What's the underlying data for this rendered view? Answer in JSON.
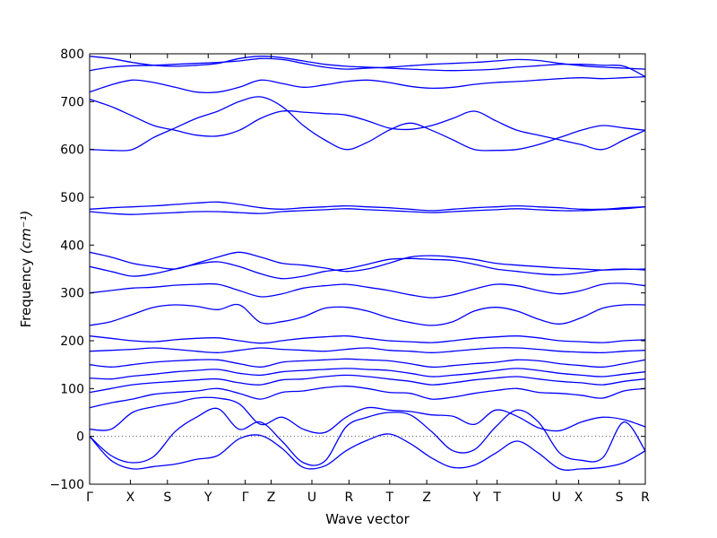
{
  "chart_data": {
    "type": "line",
    "xlabel": "Wave vector",
    "ylabel": "Frequency ",
    "ylabel_unit": "(cm⁻¹)",
    "ylim": [
      -100,
      800
    ],
    "yticks": [
      -100,
      0,
      100,
      200,
      300,
      400,
      500,
      600,
      700,
      800
    ],
    "grid": false,
    "zero_line": "dotted",
    "line_color": "#0000ff",
    "k_points": [
      {
        "label": "Γ",
        "x": 0.0
      },
      {
        "label": "X",
        "x": 0.44
      },
      {
        "label": "S",
        "x": 0.84
      },
      {
        "label": "Y",
        "x": 1.28
      },
      {
        "label": "Γ",
        "x": 1.68
      },
      {
        "label": "Z",
        "x": 1.96
      },
      {
        "label": "U",
        "x": 2.4
      },
      {
        "label": "R",
        "x": 2.8
      },
      {
        "label": "T",
        "x": 3.24
      },
      {
        "label": "Z",
        "x": 3.64
      },
      {
        "label": "Y",
        "x": 4.18
      },
      {
        "label": "T",
        "x": 4.4
      },
      {
        "label": "U",
        "x": 5.04
      },
      {
        "label": "X",
        "x": 5.28
      },
      {
        "label": "S",
        "x": 5.72
      },
      {
        "label": "R",
        "x": 6.0
      }
    ],
    "series": [
      {
        "values": [
          0,
          -50,
          -68,
          -63,
          -58,
          -48,
          -40,
          -5,
          2,
          -25,
          -65,
          -62,
          -30,
          -8,
          5,
          -15,
          -45,
          -65,
          -60,
          -35,
          -10,
          -35,
          -68,
          -68,
          -65,
          -55,
          -30
        ]
      },
      {
        "values": [
          0,
          -40,
          -55,
          -42,
          10,
          40,
          58,
          15,
          30,
          -10,
          -55,
          -52,
          20,
          40,
          50,
          45,
          10,
          -30,
          -28,
          20,
          55,
          30,
          -35,
          -50,
          -45,
          30,
          -30
        ]
      },
      {
        "values": [
          15,
          15,
          50,
          62,
          70,
          80,
          80,
          68,
          25,
          40,
          15,
          8,
          40,
          60,
          55,
          52,
          45,
          42,
          25,
          55,
          42,
          18,
          12,
          30,
          40,
          35,
          20
        ]
      },
      {
        "values": [
          60,
          70,
          78,
          88,
          92,
          95,
          100,
          90,
          78,
          92,
          95,
          102,
          105,
          100,
          92,
          90,
          78,
          82,
          90,
          96,
          100,
          92,
          90,
          86,
          80,
          95,
          100
        ]
      },
      {
        "values": [
          92,
          100,
          108,
          112,
          115,
          118,
          120,
          112,
          108,
          118,
          120,
          125,
          128,
          125,
          120,
          115,
          108,
          112,
          118,
          122,
          125,
          120,
          115,
          112,
          108,
          115,
          120
        ]
      },
      {
        "values": [
          122,
          120,
          126,
          130,
          135,
          138,
          140,
          132,
          128,
          135,
          138,
          140,
          142,
          140,
          138,
          132,
          125,
          128,
          132,
          138,
          142,
          138,
          132,
          128,
          125,
          130,
          135
        ]
      },
      {
        "values": [
          150,
          145,
          150,
          155,
          158,
          160,
          160,
          152,
          145,
          155,
          158,
          160,
          162,
          160,
          158,
          152,
          145,
          148,
          152,
          155,
          160,
          158,
          152,
          148,
          145,
          152,
          160
        ]
      },
      {
        "values": [
          178,
          180,
          182,
          185,
          182,
          178,
          175,
          180,
          185,
          182,
          180,
          178,
          182,
          185,
          180,
          178,
          175,
          178,
          182,
          185,
          185,
          182,
          178,
          176,
          175,
          178,
          180
        ]
      },
      {
        "values": [
          210,
          205,
          200,
          198,
          202,
          205,
          206,
          200,
          195,
          200,
          205,
          208,
          210,
          205,
          200,
          198,
          196,
          200,
          205,
          208,
          210,
          206,
          200,
          198,
          196,
          200,
          202
        ]
      },
      {
        "values": [
          232,
          240,
          255,
          270,
          275,
          272,
          265,
          275,
          238,
          240,
          250,
          268,
          270,
          262,
          248,
          238,
          232,
          240,
          262,
          270,
          262,
          245,
          235,
          248,
          268,
          275,
          275
        ]
      },
      {
        "values": [
          300,
          305,
          310,
          312,
          316,
          318,
          318,
          305,
          292,
          298,
          310,
          315,
          318,
          312,
          305,
          296,
          290,
          296,
          308,
          318,
          315,
          305,
          298,
          305,
          318,
          320,
          315
        ]
      },
      {
        "values": [
          355,
          345,
          335,
          340,
          350,
          360,
          365,
          355,
          340,
          330,
          335,
          345,
          350,
          360,
          370,
          372,
          370,
          368,
          360,
          350,
          345,
          340,
          338,
          342,
          348,
          350,
          348
        ]
      },
      {
        "values": [
          385,
          375,
          362,
          355,
          350,
          362,
          375,
          385,
          375,
          362,
          358,
          352,
          345,
          350,
          362,
          375,
          378,
          375,
          370,
          362,
          358,
          355,
          352,
          350,
          348,
          349,
          350
        ]
      },
      {
        "values": [
          475,
          478,
          480,
          482,
          485,
          488,
          490,
          485,
          478,
          475,
          478,
          480,
          482,
          480,
          478,
          475,
          472,
          475,
          478,
          480,
          482,
          480,
          478,
          475,
          475,
          478,
          480
        ]
      },
      {
        "values": [
          470,
          466,
          464,
          466,
          468,
          470,
          470,
          468,
          466,
          470,
          472,
          474,
          476,
          474,
          472,
          470,
          468,
          470,
          472,
          474,
          476,
          474,
          472,
          472,
          474,
          476,
          480
        ]
      },
      {
        "values": [
          600,
          598,
          600,
          625,
          645,
          665,
          680,
          700,
          710,
          690,
          650,
          620,
          600,
          615,
          640,
          655,
          640,
          620,
          600,
          598,
          600,
          610,
          625,
          640,
          650,
          645,
          640
        ]
      },
      {
        "values": [
          705,
          690,
          670,
          650,
          640,
          630,
          628,
          640,
          665,
          680,
          678,
          675,
          672,
          660,
          645,
          642,
          650,
          665,
          680,
          660,
          640,
          630,
          620,
          610,
          600,
          620,
          640
        ]
      },
      {
        "values": [
          720,
          735,
          745,
          740,
          730,
          720,
          720,
          730,
          745,
          738,
          730,
          735,
          742,
          745,
          740,
          732,
          728,
          730,
          736,
          740,
          742,
          745,
          748,
          750,
          748,
          750,
          752
        ]
      },
      {
        "values": [
          765,
          772,
          775,
          776,
          778,
          780,
          782,
          785,
          790,
          788,
          780,
          772,
          768,
          770,
          772,
          775,
          778,
          780,
          782,
          785,
          788,
          786,
          780,
          775,
          772,
          770,
          768
        ]
      },
      {
        "values": [
          795,
          790,
          782,
          776,
          774,
          776,
          780,
          790,
          795,
          792,
          785,
          778,
          774,
          772,
          770,
          768,
          766,
          765,
          766,
          768,
          772,
          775,
          778,
          778,
          776,
          774,
          752
        ]
      }
    ]
  }
}
